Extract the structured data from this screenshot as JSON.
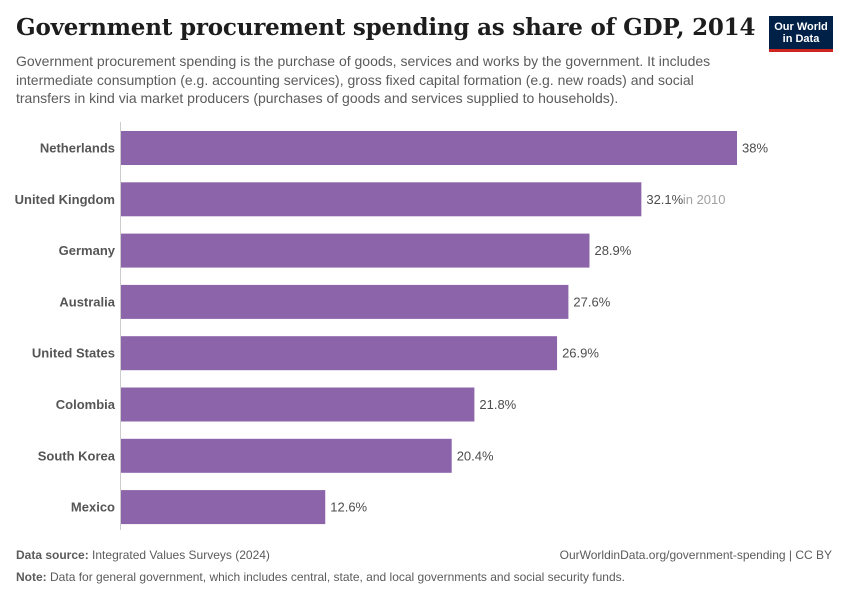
{
  "title": "Government procurement spending as share of GDP, 2014",
  "subtitle": "Government procurement spending is the purchase of goods, services and works by the government. It includes intermediate consumption (e.g. accounting services), gross fixed capital formation (e.g. new roads) and social transfers in kind via market producers (purchases of goods and services supplied to households).",
  "logo": {
    "line1": "Our World",
    "line2": "in Data",
    "bg_color": "#002147",
    "accent_color": "#ce261e"
  },
  "colors": {
    "bar": "#8c64a9",
    "axis": "#cccccc"
  },
  "chart_data": {
    "type": "bar",
    "orientation": "horizontal",
    "categories": [
      "Netherlands",
      "United Kingdom",
      "Germany",
      "Australia",
      "United States",
      "Colombia",
      "South Korea",
      "Mexico"
    ],
    "values": [
      38,
      32.1,
      28.9,
      27.6,
      26.9,
      21.8,
      20.4,
      12.6
    ],
    "value_labels": [
      "38%",
      "32.1%",
      "28.9%",
      "27.6%",
      "26.9%",
      "21.8%",
      "20.4%",
      "12.6%"
    ],
    "annotations": [
      "",
      "in 2010",
      "",
      "",
      "",
      "",
      "",
      ""
    ],
    "xlim": [
      0,
      38
    ],
    "grid": false
  },
  "footer": {
    "source_label": "Data source:",
    "source_text": "Integrated Values Surveys (2024)",
    "url_text": "OurWorldinData.org/government-spending | CC BY",
    "note_label": "Note:",
    "note_text": "Data for general government, which includes central, state, and local governments and social security funds."
  }
}
